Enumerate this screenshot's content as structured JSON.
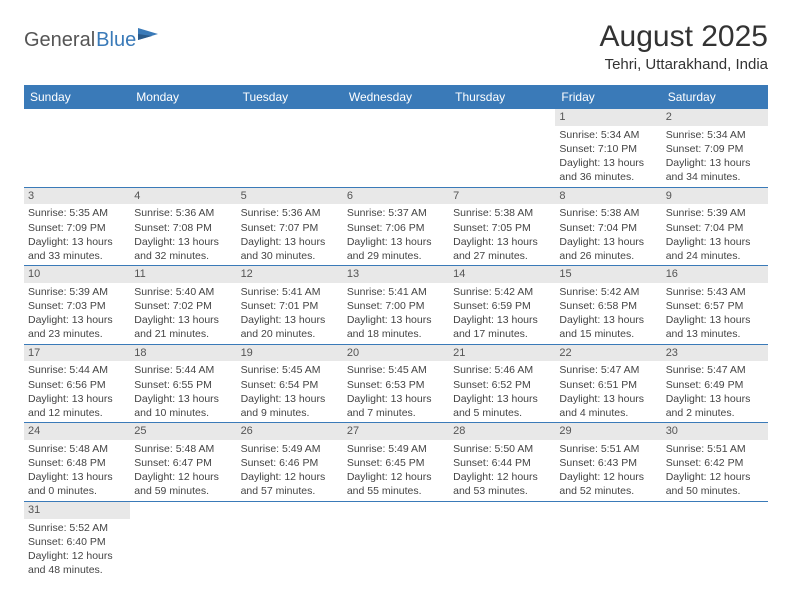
{
  "logo": {
    "text1": "General",
    "text2": "Blue"
  },
  "title": "August 2025",
  "location": "Tehri, Uttarakhand, India",
  "colors": {
    "header_bg": "#3a7ab8",
    "header_text": "#ffffff",
    "daynum_bg": "#e8e8e8",
    "border": "#3a7ab8",
    "body_text": "#444444"
  },
  "day_headers": [
    "Sunday",
    "Monday",
    "Tuesday",
    "Wednesday",
    "Thursday",
    "Friday",
    "Saturday"
  ],
  "weeks": [
    [
      null,
      null,
      null,
      null,
      null,
      {
        "n": "1",
        "sr": "5:34 AM",
        "ss": "7:10 PM",
        "dl": "13 hours and 36 minutes."
      },
      {
        "n": "2",
        "sr": "5:34 AM",
        "ss": "7:09 PM",
        "dl": "13 hours and 34 minutes."
      }
    ],
    [
      {
        "n": "3",
        "sr": "5:35 AM",
        "ss": "7:09 PM",
        "dl": "13 hours and 33 minutes."
      },
      {
        "n": "4",
        "sr": "5:36 AM",
        "ss": "7:08 PM",
        "dl": "13 hours and 32 minutes."
      },
      {
        "n": "5",
        "sr": "5:36 AM",
        "ss": "7:07 PM",
        "dl": "13 hours and 30 minutes."
      },
      {
        "n": "6",
        "sr": "5:37 AM",
        "ss": "7:06 PM",
        "dl": "13 hours and 29 minutes."
      },
      {
        "n": "7",
        "sr": "5:38 AM",
        "ss": "7:05 PM",
        "dl": "13 hours and 27 minutes."
      },
      {
        "n": "8",
        "sr": "5:38 AM",
        "ss": "7:04 PM",
        "dl": "13 hours and 26 minutes."
      },
      {
        "n": "9",
        "sr": "5:39 AM",
        "ss": "7:04 PM",
        "dl": "13 hours and 24 minutes."
      }
    ],
    [
      {
        "n": "10",
        "sr": "5:39 AM",
        "ss": "7:03 PM",
        "dl": "13 hours and 23 minutes."
      },
      {
        "n": "11",
        "sr": "5:40 AM",
        "ss": "7:02 PM",
        "dl": "13 hours and 21 minutes."
      },
      {
        "n": "12",
        "sr": "5:41 AM",
        "ss": "7:01 PM",
        "dl": "13 hours and 20 minutes."
      },
      {
        "n": "13",
        "sr": "5:41 AM",
        "ss": "7:00 PM",
        "dl": "13 hours and 18 minutes."
      },
      {
        "n": "14",
        "sr": "5:42 AM",
        "ss": "6:59 PM",
        "dl": "13 hours and 17 minutes."
      },
      {
        "n": "15",
        "sr": "5:42 AM",
        "ss": "6:58 PM",
        "dl": "13 hours and 15 minutes."
      },
      {
        "n": "16",
        "sr": "5:43 AM",
        "ss": "6:57 PM",
        "dl": "13 hours and 13 minutes."
      }
    ],
    [
      {
        "n": "17",
        "sr": "5:44 AM",
        "ss": "6:56 PM",
        "dl": "13 hours and 12 minutes."
      },
      {
        "n": "18",
        "sr": "5:44 AM",
        "ss": "6:55 PM",
        "dl": "13 hours and 10 minutes."
      },
      {
        "n": "19",
        "sr": "5:45 AM",
        "ss": "6:54 PM",
        "dl": "13 hours and 9 minutes."
      },
      {
        "n": "20",
        "sr": "5:45 AM",
        "ss": "6:53 PM",
        "dl": "13 hours and 7 minutes."
      },
      {
        "n": "21",
        "sr": "5:46 AM",
        "ss": "6:52 PM",
        "dl": "13 hours and 5 minutes."
      },
      {
        "n": "22",
        "sr": "5:47 AM",
        "ss": "6:51 PM",
        "dl": "13 hours and 4 minutes."
      },
      {
        "n": "23",
        "sr": "5:47 AM",
        "ss": "6:49 PM",
        "dl": "13 hours and 2 minutes."
      }
    ],
    [
      {
        "n": "24",
        "sr": "5:48 AM",
        "ss": "6:48 PM",
        "dl": "13 hours and 0 minutes."
      },
      {
        "n": "25",
        "sr": "5:48 AM",
        "ss": "6:47 PM",
        "dl": "12 hours and 59 minutes."
      },
      {
        "n": "26",
        "sr": "5:49 AM",
        "ss": "6:46 PM",
        "dl": "12 hours and 57 minutes."
      },
      {
        "n": "27",
        "sr": "5:49 AM",
        "ss": "6:45 PM",
        "dl": "12 hours and 55 minutes."
      },
      {
        "n": "28",
        "sr": "5:50 AM",
        "ss": "6:44 PM",
        "dl": "12 hours and 53 minutes."
      },
      {
        "n": "29",
        "sr": "5:51 AM",
        "ss": "6:43 PM",
        "dl": "12 hours and 52 minutes."
      },
      {
        "n": "30",
        "sr": "5:51 AM",
        "ss": "6:42 PM",
        "dl": "12 hours and 50 minutes."
      }
    ],
    [
      {
        "n": "31",
        "sr": "5:52 AM",
        "ss": "6:40 PM",
        "dl": "12 hours and 48 minutes."
      },
      null,
      null,
      null,
      null,
      null,
      null
    ]
  ],
  "labels": {
    "sunrise": "Sunrise: ",
    "sunset": "Sunset: ",
    "daylight": "Daylight: "
  }
}
